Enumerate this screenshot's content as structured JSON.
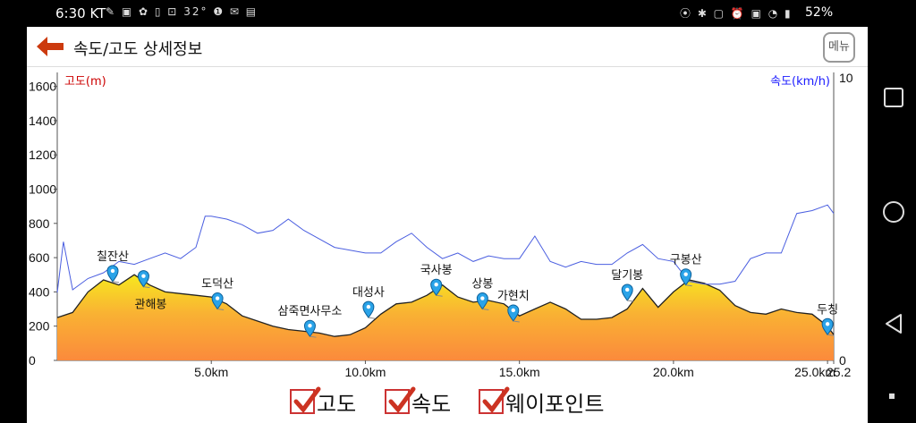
{
  "status": {
    "time": "6:30 KT",
    "temp": "32°",
    "battery": "52%"
  },
  "header": {
    "title": "속도/고도 상세정보",
    "menu_label": "메뉴"
  },
  "legend": {
    "items": [
      {
        "label": "고도",
        "checked": true
      },
      {
        "label": "속도",
        "checked": true
      },
      {
        "label": "웨이포인트",
        "checked": true
      }
    ],
    "check_color": "#cc3322"
  },
  "chart_data": {
    "type": "area",
    "left_axis_label": "고도(m)",
    "right_axis_label": "속도(km/h)",
    "left_axis_color": "#cc0000",
    "right_axis_color": "#1a1aff",
    "y_left_ticks": [
      "1600",
      "1400",
      "1200",
      "1000",
      "800",
      "600",
      "400",
      "200",
      "0"
    ],
    "y_left_range": [
      0,
      1650
    ],
    "y_right_ticks": [
      "10",
      "0"
    ],
    "y_right_range": [
      0,
      10
    ],
    "x_ticks": [
      "5.0km",
      "10.0km",
      "15.0km",
      "20.0km",
      "25.0km",
      "25.2"
    ],
    "x_tick_values": [
      5,
      10,
      15,
      20,
      25,
      25.2
    ],
    "x_range": [
      0,
      25.2
    ],
    "altitude": {
      "x": [
        0,
        0.5,
        1,
        1.5,
        2,
        2.5,
        3,
        3.5,
        4,
        4.5,
        5,
        5.5,
        6,
        6.5,
        7,
        7.5,
        8,
        8.5,
        9,
        9.5,
        10,
        10.5,
        11,
        11.5,
        12,
        12.5,
        13,
        13.5,
        14,
        14.5,
        15,
        15.5,
        16,
        16.5,
        17,
        17.5,
        18,
        18.5,
        19,
        19.5,
        20,
        20.5,
        21,
        21.5,
        22,
        22.5,
        23,
        23.5,
        24,
        24.5,
        25,
        25.2
      ],
      "y": [
        250,
        280,
        400,
        470,
        440,
        500,
        440,
        400,
        390,
        380,
        370,
        330,
        260,
        230,
        200,
        180,
        170,
        160,
        140,
        150,
        190,
        270,
        330,
        340,
        380,
        440,
        370,
        340,
        350,
        330,
        260,
        300,
        340,
        300,
        240,
        240,
        250,
        300,
        420,
        310,
        400,
        470,
        450,
        410,
        320,
        280,
        270,
        300,
        280,
        270,
        200,
        150
      ]
    },
    "speed": {
      "x": [
        0,
        0.2,
        0.5,
        1,
        1.5,
        2,
        2.5,
        3,
        3.5,
        4,
        4.5,
        4.8,
        5,
        5.5,
        6,
        6.5,
        7,
        7.5,
        8,
        8.5,
        9,
        9.5,
        10,
        10.5,
        11,
        11.5,
        12,
        12.5,
        13,
        13.5,
        14,
        14.5,
        15,
        15.5,
        16,
        16.5,
        17,
        17.5,
        18,
        18.5,
        19,
        19.5,
        20,
        20.5,
        21,
        21.5,
        22,
        22.5,
        23,
        23.5,
        24,
        24.5,
        25,
        25.2
      ],
      "y": [
        2.4,
        4.2,
        2.5,
        2.9,
        3.1,
        3.5,
        3.4,
        3.6,
        3.8,
        3.6,
        4.0,
        5.1,
        5.1,
        5.0,
        4.8,
        4.5,
        4.6,
        5.0,
        4.6,
        4.3,
        4.0,
        3.9,
        3.8,
        3.8,
        4.2,
        4.5,
        4.0,
        3.6,
        3.8,
        3.5,
        3.7,
        3.6,
        3.6,
        4.4,
        3.5,
        3.3,
        3.5,
        3.4,
        3.4,
        3.8,
        4.1,
        3.6,
        3.5,
        2.8,
        2.7,
        2.7,
        2.8,
        3.6,
        3.8,
        3.8,
        5.2,
        5.3,
        5.5,
        5.2
      ]
    },
    "waypoints": [
      {
        "name": "칠잔산",
        "x": 1.8
      },
      {
        "name": "관해봉",
        "x": 2.8
      },
      {
        "name": "도덕산",
        "x": 5.2
      },
      {
        "name": "삼죽면사무소",
        "x": 8.2
      },
      {
        "name": "대성사",
        "x": 10.1
      },
      {
        "name": "국사봉",
        "x": 12.3
      },
      {
        "name": "상봉",
        "x": 13.8
      },
      {
        "name": "가현치",
        "x": 14.8
      },
      {
        "name": "달기봉",
        "x": 18.5
      },
      {
        "name": "구봉산",
        "x": 20.4
      },
      {
        "name": "두칭",
        "x": 25.0
      }
    ],
    "waypoint_y": [
      460,
      430,
      300,
      140,
      250,
      380,
      300,
      230,
      350,
      440,
      150
    ],
    "waypoint_label_offset": [
      -40,
      20,
      -40,
      -40,
      -40,
      -40,
      -40,
      -20,
      -40,
      -40,
      -40
    ],
    "grid": false
  }
}
